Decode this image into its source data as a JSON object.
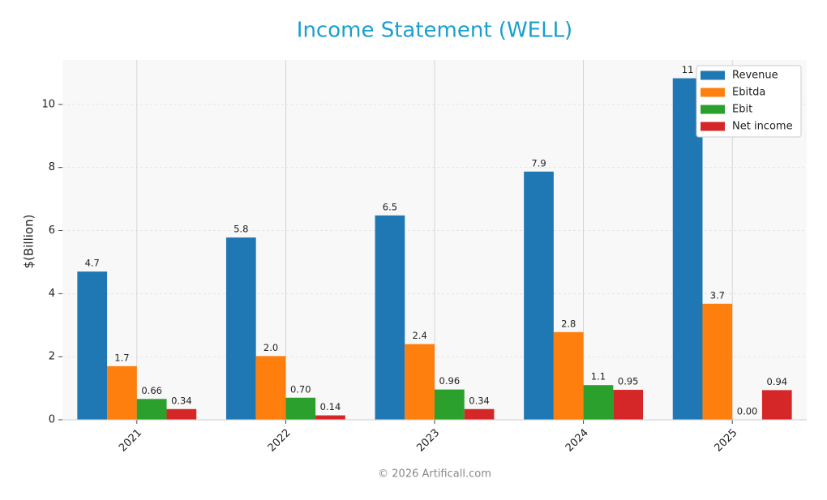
{
  "chart_data": {
    "type": "bar",
    "title": "Income Statement (WELL)",
    "y_label": "$(Billion)",
    "categories": [
      "2021",
      "2022",
      "2023",
      "2024",
      "2025"
    ],
    "series": [
      {
        "name": "Revenue",
        "color": "#1f77b4",
        "values": [
          4.7,
          5.78,
          6.48,
          7.87,
          10.83
        ],
        "value_labels": [
          "4.7",
          "5.8",
          "6.5",
          "7.9",
          "11"
        ]
      },
      {
        "name": "Ebitda",
        "color": "#ff7f0e",
        "values": [
          1.7,
          2.02,
          2.4,
          2.78,
          3.68
        ],
        "value_labels": [
          "1.7",
          "2.0",
          "2.4",
          "2.8",
          "3.7"
        ]
      },
      {
        "name": "Ebit",
        "color": "#2ca02c",
        "values": [
          0.66,
          0.7,
          0.96,
          1.1,
          0
        ],
        "value_labels": [
          "0.66",
          "0.70",
          "0.96",
          "1.1",
          "0.00"
        ]
      },
      {
        "name": "Net income",
        "color": "#d62728",
        "values": [
          0.34,
          0.14,
          0.34,
          0.95,
          0.94
        ],
        "value_labels": [
          "0.34",
          "0.14",
          "0.34",
          "0.95",
          "0.94"
        ]
      }
    ],
    "ylim": [
      0,
      11.41
    ],
    "yticks": [
      0,
      2,
      4,
      6,
      8,
      10
    ],
    "grid": true,
    "legend": "upper right",
    "footer": "© 2026 Artificall.com"
  }
}
